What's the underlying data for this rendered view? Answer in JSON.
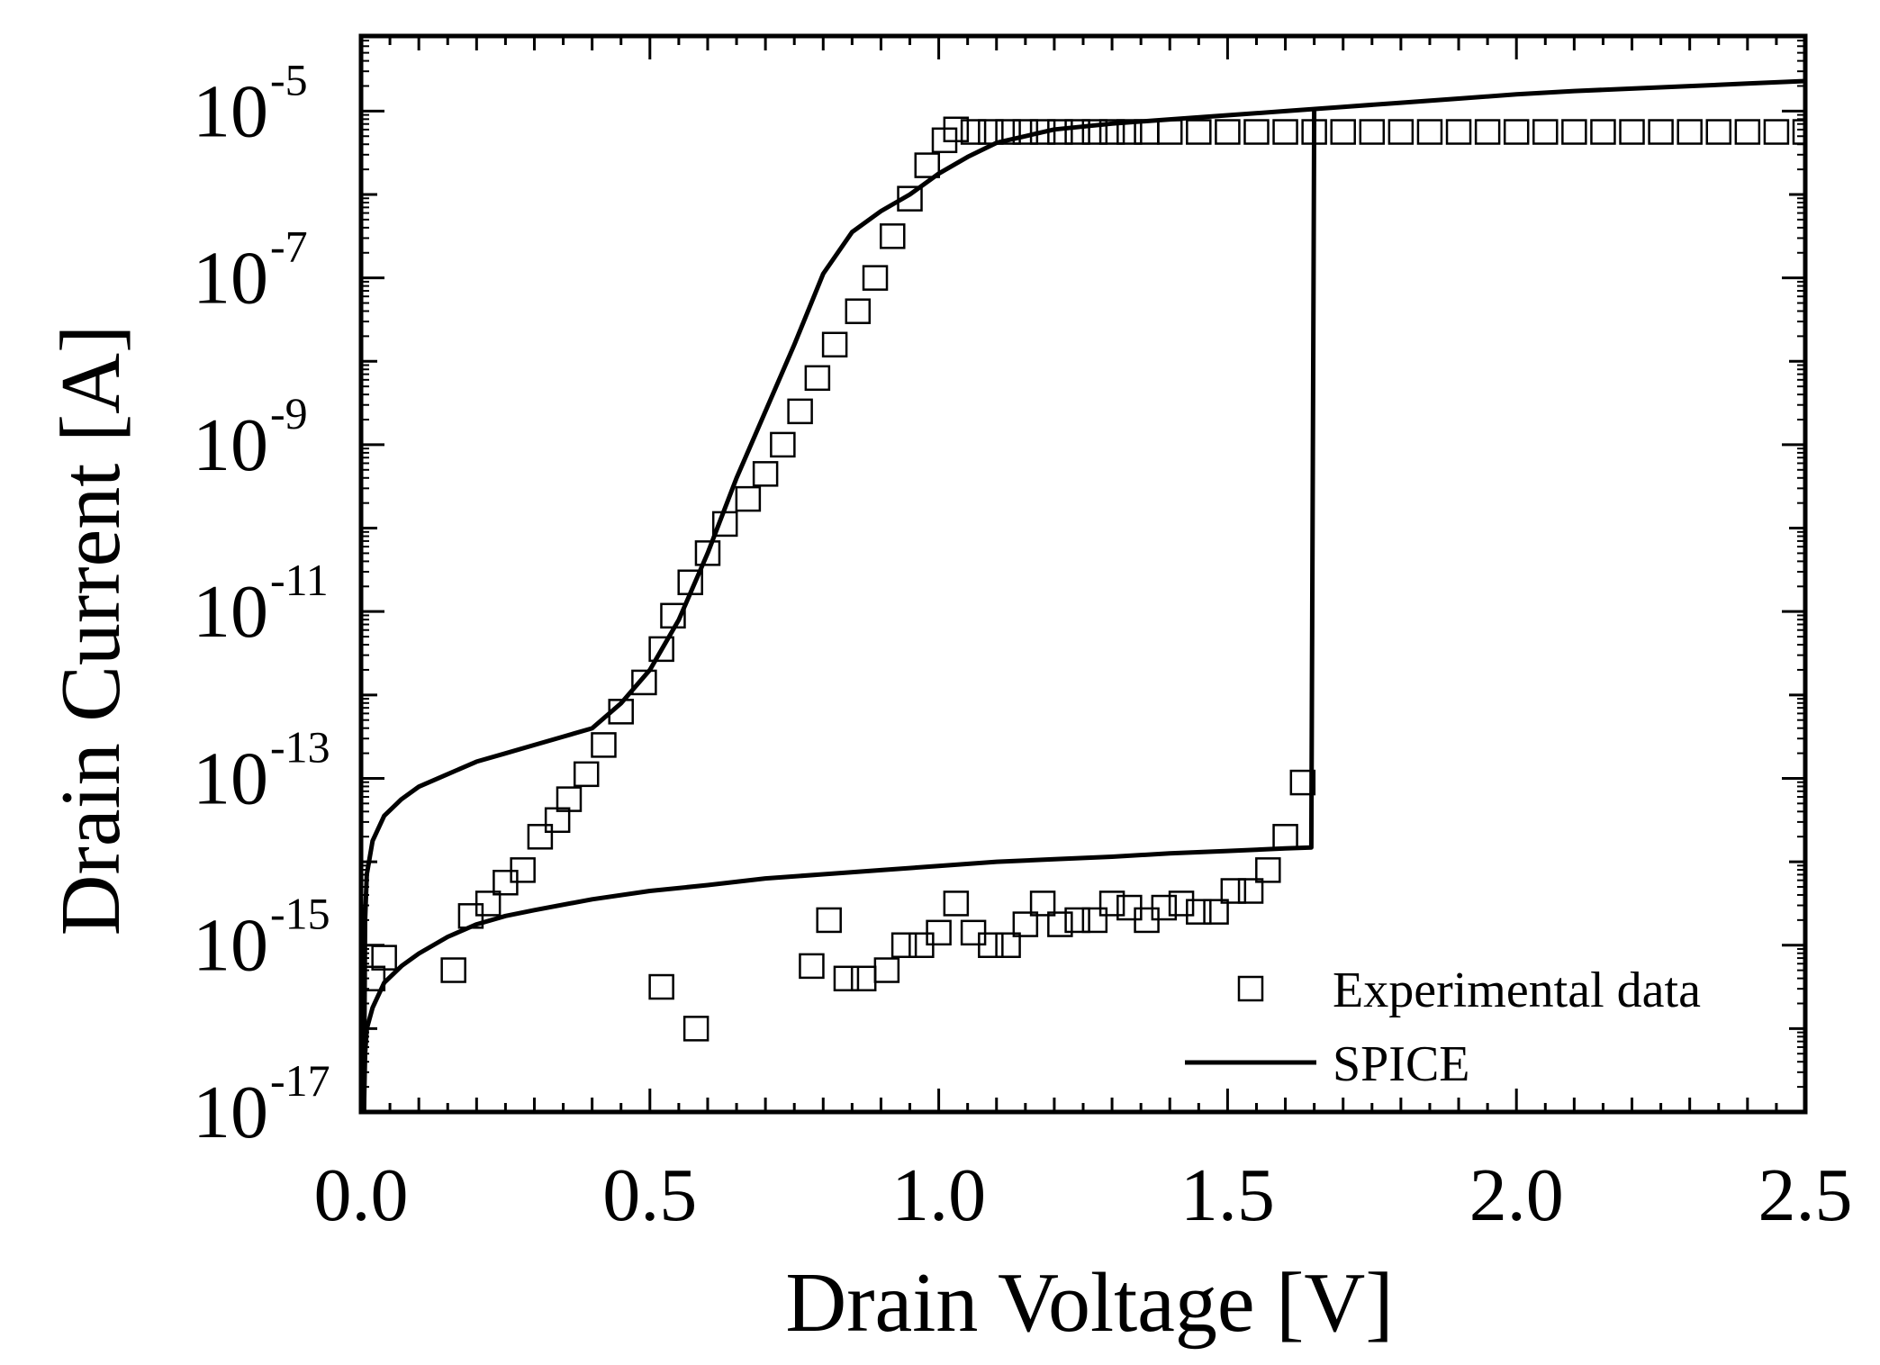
{
  "chart_data": {
    "type": "scatter",
    "title": "",
    "xlabel": "Drain Voltage [V]",
    "ylabel": "Drain Current [A]",
    "xlim": [
      0.0,
      2.5
    ],
    "ylim_log10": [
      -17,
      -4.1
    ],
    "y_scale": "log",
    "x_ticks": [
      0.0,
      0.5,
      1.0,
      1.5,
      2.0,
      2.5
    ],
    "x_tick_labels": [
      "0.0",
      "0.5",
      "1.0",
      "1.5",
      "2.0",
      "2.5"
    ],
    "y_ticks_exp": [
      -17,
      -15,
      -13,
      -11,
      -9,
      -7,
      -5
    ],
    "y_tick_base": "10",
    "y_tick_exps": [
      "-17",
      "-15",
      "-13",
      "-11",
      "-9",
      "-7",
      "-5"
    ],
    "grid": false,
    "legend_position": "bottom-right",
    "series": [
      {
        "name": "Experimental data",
        "marker": "open-square",
        "color": "#000000",
        "points_log10": [
          [
            0.02,
            -15.4
          ],
          [
            0.04,
            -15.15
          ],
          [
            0.16,
            -15.3
          ],
          [
            0.19,
            -14.65
          ],
          [
            0.22,
            -14.5
          ],
          [
            0.25,
            -14.25
          ],
          [
            0.28,
            -14.1
          ],
          [
            0.31,
            -13.7
          ],
          [
            0.34,
            -13.5
          ],
          [
            0.36,
            -13.25
          ],
          [
            0.39,
            -12.95
          ],
          [
            0.42,
            -12.6
          ],
          [
            0.45,
            -12.2
          ],
          [
            0.49,
            -11.85
          ],
          [
            0.52,
            -11.45
          ],
          [
            0.54,
            -11.05
          ],
          [
            0.57,
            -10.65
          ],
          [
            0.6,
            -10.3
          ],
          [
            0.63,
            -9.95
          ],
          [
            0.67,
            -9.65
          ],
          [
            0.7,
            -9.35
          ],
          [
            0.73,
            -9.0
          ],
          [
            0.76,
            -8.6
          ],
          [
            0.79,
            -8.2
          ],
          [
            0.82,
            -7.8
          ],
          [
            0.86,
            -7.4
          ],
          [
            0.89,
            -7.0
          ],
          [
            0.92,
            -6.5
          ],
          [
            0.95,
            -6.05
          ],
          [
            0.98,
            -5.65
          ],
          [
            1.01,
            -5.35
          ],
          [
            1.03,
            -5.22
          ],
          [
            1.06,
            -5.25
          ],
          [
            1.09,
            -5.25
          ],
          [
            1.12,
            -5.25
          ],
          [
            1.15,
            -5.25
          ],
          [
            1.18,
            -5.25
          ],
          [
            1.21,
            -5.25
          ],
          [
            1.24,
            -5.25
          ],
          [
            1.27,
            -5.25
          ],
          [
            1.3,
            -5.25
          ],
          [
            1.33,
            -5.25
          ],
          [
            1.36,
            -5.25
          ],
          [
            1.4,
            -5.25
          ],
          [
            1.45,
            -5.25
          ],
          [
            1.5,
            -5.25
          ],
          [
            1.55,
            -5.25
          ],
          [
            1.6,
            -5.25
          ],
          [
            1.65,
            -5.25
          ],
          [
            1.7,
            -5.25
          ],
          [
            1.75,
            -5.25
          ],
          [
            1.8,
            -5.25
          ],
          [
            1.85,
            -5.25
          ],
          [
            1.9,
            -5.25
          ],
          [
            1.95,
            -5.25
          ],
          [
            2.0,
            -5.25
          ],
          [
            2.05,
            -5.25
          ],
          [
            2.1,
            -5.25
          ],
          [
            2.15,
            -5.25
          ],
          [
            2.2,
            -5.25
          ],
          [
            2.25,
            -5.25
          ],
          [
            2.3,
            -5.25
          ],
          [
            2.35,
            -5.25
          ],
          [
            2.4,
            -5.25
          ],
          [
            2.45,
            -5.25
          ],
          [
            2.5,
            -5.25
          ],
          [
            0.52,
            -15.5
          ],
          [
            0.58,
            -16.0
          ],
          [
            0.78,
            -15.25
          ],
          [
            0.81,
            -14.7
          ],
          [
            0.84,
            -15.4
          ],
          [
            0.87,
            -15.4
          ],
          [
            0.91,
            -15.3
          ],
          [
            0.94,
            -15.0
          ],
          [
            0.97,
            -15.0
          ],
          [
            1.0,
            -14.85
          ],
          [
            1.03,
            -14.5
          ],
          [
            1.06,
            -14.85
          ],
          [
            1.09,
            -15.0
          ],
          [
            1.12,
            -15.0
          ],
          [
            1.15,
            -14.75
          ],
          [
            1.18,
            -14.5
          ],
          [
            1.21,
            -14.75
          ],
          [
            1.24,
            -14.7
          ],
          [
            1.27,
            -14.7
          ],
          [
            1.3,
            -14.5
          ],
          [
            1.33,
            -14.55
          ],
          [
            1.36,
            -14.7
          ],
          [
            1.39,
            -14.55
          ],
          [
            1.42,
            -14.5
          ],
          [
            1.45,
            -14.6
          ],
          [
            1.48,
            -14.6
          ],
          [
            1.51,
            -14.35
          ],
          [
            1.54,
            -14.35
          ],
          [
            1.57,
            -14.1
          ],
          [
            1.6,
            -13.7
          ],
          [
            1.63,
            -13.05
          ]
        ]
      },
      {
        "name": "SPICE",
        "marker": "line",
        "color": "#000000",
        "branches_log10": [
          [
            [
              0.005,
              -17.0
            ],
            [
              0.007,
              -14.7
            ],
            [
              0.01,
              -14.15
            ],
            [
              0.02,
              -13.75
            ],
            [
              0.04,
              -13.45
            ],
            [
              0.07,
              -13.25
            ],
            [
              0.1,
              -13.1
            ],
            [
              0.15,
              -12.95
            ],
            [
              0.2,
              -12.8
            ],
            [
              0.25,
              -12.7
            ],
            [
              0.3,
              -12.6
            ],
            [
              0.35,
              -12.5
            ],
            [
              0.4,
              -12.4
            ],
            [
              0.45,
              -12.1
            ],
            [
              0.5,
              -11.7
            ],
            [
              0.55,
              -11.1
            ],
            [
              0.6,
              -10.3
            ],
            [
              0.65,
              -9.4
            ],
            [
              0.7,
              -8.6
            ],
            [
              0.75,
              -7.8
            ],
            [
              0.8,
              -6.95
            ],
            [
              0.85,
              -6.45
            ],
            [
              0.9,
              -6.2
            ],
            [
              0.95,
              -6.0
            ],
            [
              1.0,
              -5.75
            ],
            [
              1.05,
              -5.55
            ],
            [
              1.1,
              -5.38
            ],
            [
              1.2,
              -5.22
            ],
            [
              1.3,
              -5.15
            ],
            [
              1.4,
              -5.1
            ],
            [
              1.5,
              -5.05
            ],
            [
              1.6,
              -5.0
            ],
            [
              1.7,
              -4.95
            ],
            [
              1.8,
              -4.9
            ],
            [
              1.9,
              -4.85
            ],
            [
              2.0,
              -4.8
            ],
            [
              2.1,
              -4.76
            ],
            [
              2.2,
              -4.73
            ],
            [
              2.3,
              -4.7
            ],
            [
              2.4,
              -4.67
            ],
            [
              2.5,
              -4.64
            ]
          ],
          [
            [
              0.005,
              -17.0
            ],
            [
              0.007,
              -16.3
            ],
            [
              0.01,
              -16.0
            ],
            [
              0.02,
              -15.75
            ],
            [
              0.04,
              -15.45
            ],
            [
              0.07,
              -15.25
            ],
            [
              0.1,
              -15.1
            ],
            [
              0.15,
              -14.9
            ],
            [
              0.2,
              -14.75
            ],
            [
              0.25,
              -14.65
            ],
            [
              0.3,
              -14.58
            ],
            [
              0.4,
              -14.45
            ],
            [
              0.5,
              -14.35
            ],
            [
              0.6,
              -14.28
            ],
            [
              0.7,
              -14.2
            ],
            [
              0.8,
              -14.15
            ],
            [
              0.9,
              -14.1
            ],
            [
              1.0,
              -14.05
            ],
            [
              1.1,
              -14.0
            ],
            [
              1.2,
              -13.97
            ],
            [
              1.3,
              -13.94
            ],
            [
              1.4,
              -13.9
            ],
            [
              1.5,
              -13.87
            ],
            [
              1.6,
              -13.84
            ],
            [
              1.645,
              -13.83
            ],
            [
              1.65,
              -5.0
            ]
          ]
        ]
      }
    ]
  }
}
